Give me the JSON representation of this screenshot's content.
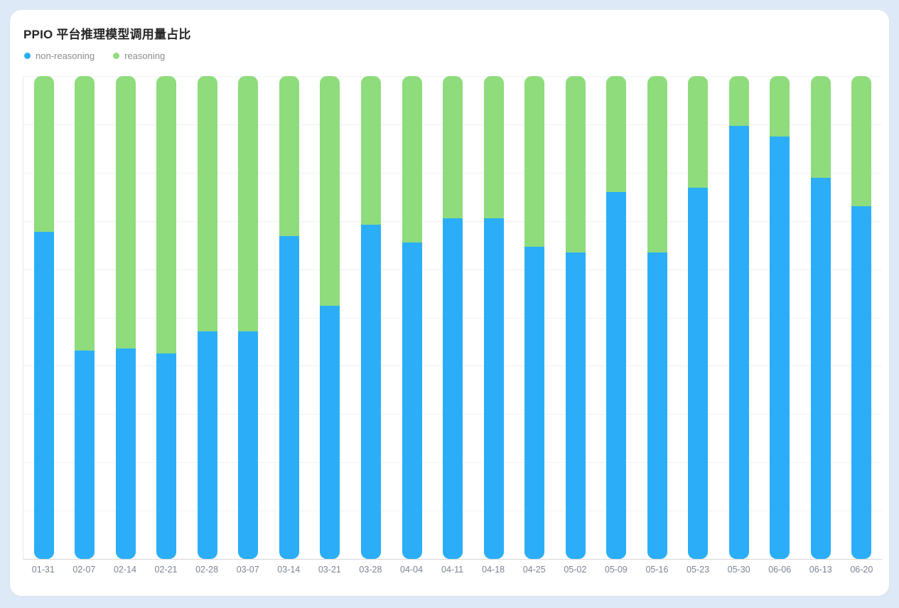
{
  "page": {
    "background_color": "#dee9f7",
    "card_color": "#ffffff"
  },
  "chart": {
    "title": "PPIO 平台推理模型调用量占比"
  },
  "chart_data": {
    "type": "bar",
    "stacked": true,
    "unit": "percent",
    "title": "PPIO 平台推理模型调用量占比",
    "categories": [
      "01-31",
      "02-07",
      "02-14",
      "02-21",
      "02-28",
      "03-07",
      "03-14",
      "03-21",
      "03-28",
      "04-04",
      "04-11",
      "04-18",
      "04-25",
      "05-02",
      "05-09",
      "05-16",
      "05-23",
      "05-30",
      "06-06",
      "06-13",
      "06-20"
    ],
    "series": [
      {
        "name": "non-reasoning",
        "color": "#2baef7",
        "stack_position": "bottom",
        "values": [
          67.8,
          43.1,
          43.6,
          42.5,
          47.2,
          47.2,
          66.8,
          52.4,
          69.2,
          65.6,
          70.6,
          70.5,
          64.7,
          63.5,
          76.0,
          63.5,
          76.9,
          89.7,
          87.5,
          78.9,
          73.0
        ]
      },
      {
        "name": "reasoning",
        "color": "#8edc7c",
        "stack_position": "top",
        "values": [
          32.2,
          56.9,
          56.4,
          57.5,
          52.8,
          52.8,
          33.2,
          47.6,
          30.8,
          34.4,
          29.4,
          29.5,
          35.3,
          36.5,
          24.0,
          36.5,
          23.1,
          10.3,
          12.5,
          21.1,
          27.0
        ]
      }
    ],
    "ylim": [
      0,
      100
    ],
    "gridline_interval": 10,
    "grid": true,
    "y_axis_labels_visible": false,
    "legend_position": "top-left"
  }
}
